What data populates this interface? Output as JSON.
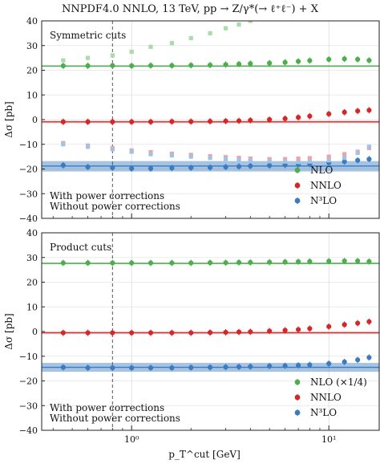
{
  "chart_data": {
    "type": "scatter",
    "title": "NNPDF4.0 NNLO, 13 TeV, pp → Z/γ*(→ ℓ⁺ℓ⁻) + X",
    "xlabel": "p_T^cut [GeV]",
    "xscale": "log",
    "xlim": [
      0.35,
      18
    ],
    "x_major_ticks": [
      1,
      10
    ],
    "x_tick_labels": [
      "10⁰",
      "10¹"
    ],
    "cut_marker_x": 0.8,
    "colors": {
      "NLO": "#4cae4c",
      "NNLO": "#d62728",
      "N3LO": "#3b7bbf"
    },
    "panels": [
      {
        "label": "Symmetric cuts",
        "ylabel": "Δσ [pb]",
        "ylim": [
          -40,
          40
        ],
        "yticks": [
          -40,
          -30,
          -20,
          -10,
          0,
          10,
          20,
          30,
          40
        ],
        "legend_position": "bottom-right",
        "legend": [
          "NLO",
          "NNLO",
          "N³LO"
        ],
        "note_with": "With power corrections",
        "note_without": "Without power corrections",
        "reference_lines": {
          "NLO": 21.7,
          "NNLO": -0.9,
          "N3LO": -18.8
        },
        "band_N3LO": [
          -21.0,
          -16.8
        ],
        "x": [
          0.45,
          0.6,
          0.8,
          1.0,
          1.25,
          1.6,
          2.0,
          2.5,
          3.0,
          3.5,
          4.0,
          5.0,
          6.0,
          7.0,
          8.0,
          10.0,
          12.0,
          14.0,
          16.0
        ],
        "series": [
          {
            "name": "NLO",
            "values": [
              21.8,
              21.8,
              21.9,
              21.8,
              21.9,
              21.9,
              22.0,
              22.1,
              22.3,
              22.5,
              22.7,
              22.9,
              23.2,
              23.6,
              23.9,
              24.4,
              24.6,
              24.4,
              24.0
            ]
          },
          {
            "name": "NNLO",
            "values": [
              -0.9,
              -0.9,
              -0.9,
              -0.9,
              -0.9,
              -0.8,
              -0.8,
              -0.7,
              -0.6,
              -0.5,
              -0.3,
              0.0,
              0.4,
              0.9,
              1.4,
              2.3,
              3.0,
              3.5,
              3.8
            ]
          },
          {
            "name": "N3LO",
            "values": [
              -18.5,
              -19.2,
              -19.5,
              -19.8,
              -19.8,
              -19.6,
              -19.5,
              -19.4,
              -19.2,
              -19.0,
              -18.8,
              -18.6,
              -18.4,
              -18.2,
              -18.0,
              -17.5,
              -17.0,
              -16.5,
              -16.0
            ]
          },
          {
            "name": "NLO (without power corrections)",
            "values": [
              24.0,
              25.0,
              26.0,
              27.5,
              29.5,
              31.0,
              33.0,
              35.0,
              37.0,
              38.5,
              40.0
            ]
          },
          {
            "name": "NNLO (without power corrections)",
            "values": [
              -9.5,
              -10.5,
              -11.5,
              -12.5,
              -13.2,
              -13.8,
              -14.3,
              -14.8,
              -15.2,
              -15.5,
              -15.8,
              -16.0,
              -16.0,
              -15.8,
              -15.6,
              -15.0,
              -14.0,
              -13.0,
              -11.5
            ]
          },
          {
            "name": "N3LO (without power corrections)",
            "values": [
              -10.0,
              -11.0,
              -12.0,
              -13.0,
              -14.0,
              -14.5,
              -15.0,
              -15.5,
              -16.0,
              -16.2,
              -16.5,
              -16.8,
              -17.0,
              -17.2,
              -17.0,
              -16.5,
              -15.5,
              -13.5,
              -11.0
            ]
          }
        ]
      },
      {
        "label": "Product cuts",
        "ylabel": "Δσ [pb]",
        "ylim": [
          -40,
          40
        ],
        "yticks": [
          -40,
          -30,
          -20,
          -10,
          0,
          10,
          20,
          30,
          40
        ],
        "legend_position": "bottom-right",
        "legend": [
          "NLO (×1/4)",
          "NNLO",
          "N³LO"
        ],
        "note_with": "With power corrections",
        "note_without": "Without power corrections",
        "reference_lines": {
          "NLO": 27.6,
          "NNLO": -0.5,
          "N3LO": -14.5
        },
        "band_N3LO": [
          -16.3,
          -12.7
        ],
        "x": [
          0.45,
          0.6,
          0.8,
          1.0,
          1.25,
          1.6,
          2.0,
          2.5,
          3.0,
          3.5,
          4.0,
          5.0,
          6.0,
          7.0,
          8.0,
          10.0,
          12.0,
          14.0,
          16.0
        ],
        "series": [
          {
            "name": "NLO (×1/4)",
            "values": [
              27.8,
              27.8,
              27.8,
              27.8,
              27.8,
              27.8,
              27.8,
              27.9,
              27.9,
              28.0,
              28.0,
              28.1,
              28.2,
              28.3,
              28.4,
              28.5,
              28.6,
              28.6,
              28.4
            ]
          },
          {
            "name": "NNLO",
            "values": [
              -0.5,
              -0.5,
              -0.5,
              -0.5,
              -0.5,
              -0.5,
              -0.5,
              -0.4,
              -0.3,
              -0.2,
              -0.1,
              0.2,
              0.5,
              0.8,
              1.2,
              2.0,
              2.8,
              3.4,
              4.0
            ]
          },
          {
            "name": "N3LO",
            "values": [
              -14.5,
              -14.7,
              -14.7,
              -14.7,
              -14.7,
              -14.7,
              -14.6,
              -14.5,
              -14.4,
              -14.3,
              -14.2,
              -14.0,
              -13.9,
              -13.7,
              -13.5,
              -13.0,
              -12.3,
              -11.5,
              -10.5
            ]
          }
        ]
      }
    ]
  }
}
